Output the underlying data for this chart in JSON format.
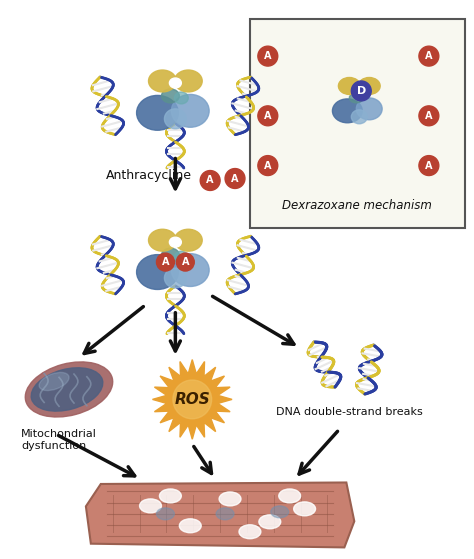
{
  "background_color": "#ffffff",
  "fig_width": 4.74,
  "fig_height": 5.59,
  "dpi": 100,
  "labels": {
    "anthracycline": "Anthracycline",
    "dexrazoxane": "Dexrazoxane mechanism",
    "ros": "ROS",
    "dna_breaks": "DNA double-strand breaks",
    "mitochondrial": "Mitochondrial\ndysfunction"
  },
  "colors": {
    "background": "#ffffff",
    "protein_yellow": "#d4b84a",
    "protein_blue_dark": "#4a6fa0",
    "protein_blue_light": "#7aa0c8",
    "protein_teal": "#5a9090",
    "dna_blue": "#2a3ea0",
    "dna_yellow": "#d8c030",
    "dna_white": "#e8e8e8",
    "dna_pink": "#c860a0",
    "anthracycline_red": "#b84030",
    "anthracycline_text": "#ffffff",
    "dexrazoxane_purple": "#4040a0",
    "dexrazoxane_text": "#ffffff",
    "ros_outer": "#c87820",
    "ros_inner": "#e8a030",
    "ros_text": "#111111",
    "mito_outer": "#c06060",
    "mito_inner": "#506080",
    "mito_inner2": "#708090",
    "cardio_fill": "#c88070",
    "cardio_border": "#9a6050",
    "cardio_line": "#8a5040",
    "cardio_white": "#ffffff",
    "box_bg": "#f8f8f0",
    "box_border": "#555555",
    "arrow": "#111111",
    "text": "#111111"
  }
}
